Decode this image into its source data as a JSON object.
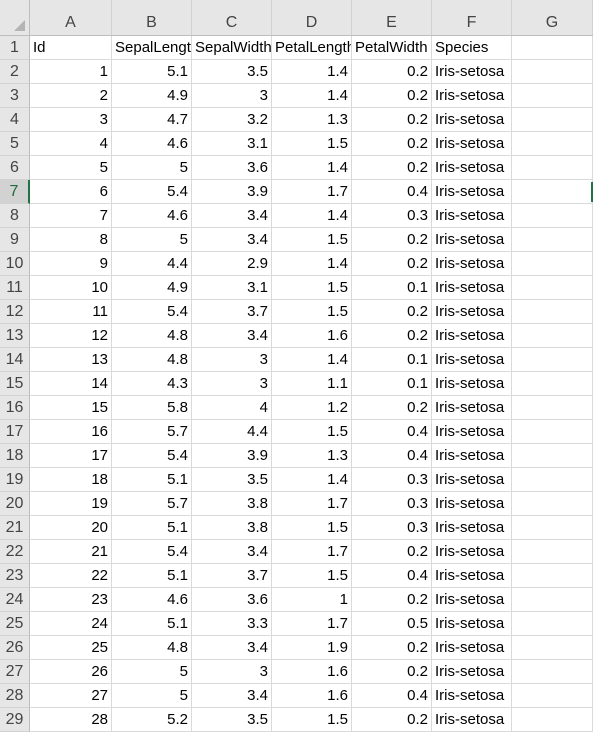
{
  "columns": [
    "A",
    "B",
    "C",
    "D",
    "E",
    "F",
    "G"
  ],
  "active_row": 7,
  "header": {
    "row_number": "1",
    "cells": [
      "Id",
      "SepalLength",
      "SepalWidth",
      "PetalLength",
      "PetalWidth",
      "Species",
      ""
    ]
  },
  "rows": [
    {
      "n": "2",
      "cells": [
        "1",
        "5.1",
        "3.5",
        "1.4",
        "0.2",
        "Iris-setosa"
      ]
    },
    {
      "n": "3",
      "cells": [
        "2",
        "4.9",
        "3",
        "1.4",
        "0.2",
        "Iris-setosa"
      ]
    },
    {
      "n": "4",
      "cells": [
        "3",
        "4.7",
        "3.2",
        "1.3",
        "0.2",
        "Iris-setosa"
      ]
    },
    {
      "n": "5",
      "cells": [
        "4",
        "4.6",
        "3.1",
        "1.5",
        "0.2",
        "Iris-setosa"
      ]
    },
    {
      "n": "6",
      "cells": [
        "5",
        "5",
        "3.6",
        "1.4",
        "0.2",
        "Iris-setosa"
      ]
    },
    {
      "n": "7",
      "cells": [
        "6",
        "5.4",
        "3.9",
        "1.7",
        "0.4",
        "Iris-setosa"
      ]
    },
    {
      "n": "8",
      "cells": [
        "7",
        "4.6",
        "3.4",
        "1.4",
        "0.3",
        "Iris-setosa"
      ]
    },
    {
      "n": "9",
      "cells": [
        "8",
        "5",
        "3.4",
        "1.5",
        "0.2",
        "Iris-setosa"
      ]
    },
    {
      "n": "10",
      "cells": [
        "9",
        "4.4",
        "2.9",
        "1.4",
        "0.2",
        "Iris-setosa"
      ]
    },
    {
      "n": "11",
      "cells": [
        "10",
        "4.9",
        "3.1",
        "1.5",
        "0.1",
        "Iris-setosa"
      ]
    },
    {
      "n": "12",
      "cells": [
        "11",
        "5.4",
        "3.7",
        "1.5",
        "0.2",
        "Iris-setosa"
      ]
    },
    {
      "n": "13",
      "cells": [
        "12",
        "4.8",
        "3.4",
        "1.6",
        "0.2",
        "Iris-setosa"
      ]
    },
    {
      "n": "14",
      "cells": [
        "13",
        "4.8",
        "3",
        "1.4",
        "0.1",
        "Iris-setosa"
      ]
    },
    {
      "n": "15",
      "cells": [
        "14",
        "4.3",
        "3",
        "1.1",
        "0.1",
        "Iris-setosa"
      ]
    },
    {
      "n": "16",
      "cells": [
        "15",
        "5.8",
        "4",
        "1.2",
        "0.2",
        "Iris-setosa"
      ]
    },
    {
      "n": "17",
      "cells": [
        "16",
        "5.7",
        "4.4",
        "1.5",
        "0.4",
        "Iris-setosa"
      ]
    },
    {
      "n": "18",
      "cells": [
        "17",
        "5.4",
        "3.9",
        "1.3",
        "0.4",
        "Iris-setosa"
      ]
    },
    {
      "n": "19",
      "cells": [
        "18",
        "5.1",
        "3.5",
        "1.4",
        "0.3",
        "Iris-setosa"
      ]
    },
    {
      "n": "20",
      "cells": [
        "19",
        "5.7",
        "3.8",
        "1.7",
        "0.3",
        "Iris-setosa"
      ]
    },
    {
      "n": "21",
      "cells": [
        "20",
        "5.1",
        "3.8",
        "1.5",
        "0.3",
        "Iris-setosa"
      ]
    },
    {
      "n": "22",
      "cells": [
        "21",
        "5.4",
        "3.4",
        "1.7",
        "0.2",
        "Iris-setosa"
      ]
    },
    {
      "n": "23",
      "cells": [
        "22",
        "5.1",
        "3.7",
        "1.5",
        "0.4",
        "Iris-setosa"
      ]
    },
    {
      "n": "24",
      "cells": [
        "23",
        "4.6",
        "3.6",
        "1",
        "0.2",
        "Iris-setosa"
      ]
    },
    {
      "n": "25",
      "cells": [
        "24",
        "5.1",
        "3.3",
        "1.7",
        "0.5",
        "Iris-setosa"
      ]
    },
    {
      "n": "26",
      "cells": [
        "25",
        "4.8",
        "3.4",
        "1.9",
        "0.2",
        "Iris-setosa"
      ]
    },
    {
      "n": "27",
      "cells": [
        "26",
        "5",
        "3",
        "1.6",
        "0.2",
        "Iris-setosa"
      ]
    },
    {
      "n": "28",
      "cells": [
        "27",
        "5",
        "3.4",
        "1.6",
        "0.4",
        "Iris-setosa"
      ]
    },
    {
      "n": "29",
      "cells": [
        "28",
        "5.2",
        "3.5",
        "1.5",
        "0.2",
        "Iris-setosa"
      ]
    }
  ]
}
